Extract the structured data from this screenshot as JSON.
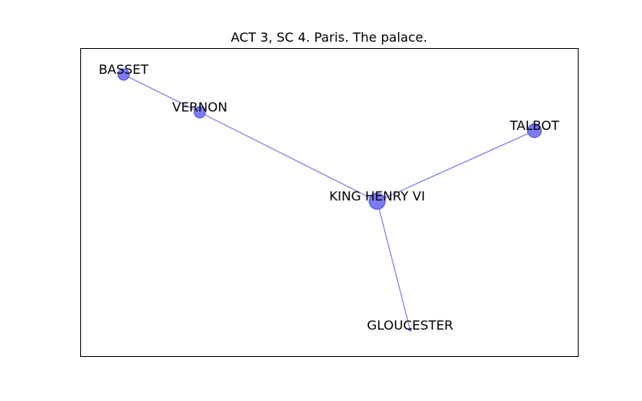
{
  "figure": {
    "title": "ACT 3, SC 4. Paris. The palace."
  },
  "colors": {
    "node_fill": "#7b7bf2",
    "node_stroke": "#5a5ae6",
    "edge": "#7b7bf2",
    "frame": "#000000",
    "background": "#ffffff"
  },
  "graph": {
    "nodes": [
      {
        "id": "king-henry-vi",
        "label": "KING HENRY VI",
        "size": "large"
      },
      {
        "id": "talbot",
        "label": "TALBOT",
        "size": "medium"
      },
      {
        "id": "vernon",
        "label": "VERNON",
        "size": "small"
      },
      {
        "id": "basset",
        "label": "BASSET",
        "size": "small"
      },
      {
        "id": "gloucester",
        "label": "GLOUCESTER",
        "size": "tiny"
      }
    ],
    "edges": [
      {
        "source": "basset",
        "target": "vernon"
      },
      {
        "source": "vernon",
        "target": "king-henry-vi"
      },
      {
        "source": "king-henry-vi",
        "target": "talbot"
      },
      {
        "source": "king-henry-vi",
        "target": "gloucester"
      }
    ]
  }
}
